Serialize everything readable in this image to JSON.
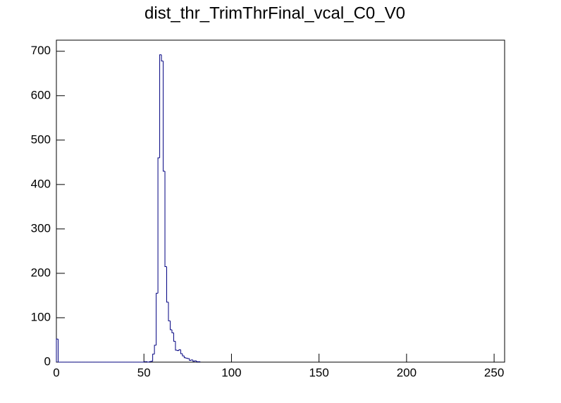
{
  "chart_data": {
    "type": "histogram",
    "title": "dist_thr_TrimThrFinal_vcal_C0_V0",
    "color": "#000080",
    "bins": [
      0,
      1,
      2,
      3,
      4,
      5,
      6,
      7,
      8,
      9,
      10,
      11,
      12,
      13,
      14,
      15,
      16,
      17,
      18,
      19,
      20,
      21,
      22,
      23,
      24,
      25,
      26,
      27,
      28,
      29,
      30,
      31,
      32,
      33,
      34,
      35,
      36,
      37,
      38,
      39,
      40,
      41,
      42,
      43,
      44,
      45,
      46,
      47,
      48,
      49,
      50,
      51,
      52,
      53,
      54,
      55,
      56,
      57,
      58,
      59,
      60,
      61,
      62,
      63,
      64,
      65,
      66,
      67,
      68,
      69,
      70,
      71,
      72,
      73,
      74,
      75,
      76,
      77,
      78,
      79,
      80,
      81,
      82
    ],
    "counts": [
      52,
      0,
      0,
      0,
      0,
      0,
      0,
      0,
      0,
      0,
      0,
      0,
      0,
      0,
      0,
      0,
      0,
      0,
      0,
      0,
      0,
      0,
      0,
      0,
      0,
      0,
      0,
      0,
      0,
      0,
      0,
      0,
      0,
      0,
      0,
      0,
      0,
      0,
      0,
      0,
      0,
      0,
      0,
      0,
      0,
      0,
      0,
      0,
      0,
      0,
      1,
      1,
      0,
      1,
      2,
      18,
      38,
      155,
      460,
      692,
      678,
      430,
      215,
      135,
      93,
      73,
      66,
      47,
      27,
      26,
      28,
      19,
      14,
      10,
      9,
      8,
      4,
      5,
      2,
      3,
      1,
      1
    ],
    "xlim": [
      0,
      256
    ],
    "ylim": [
      0,
      725
    ],
    "xticks": [
      0,
      50,
      100,
      150,
      200,
      250
    ],
    "yticks": [
      0,
      100,
      200,
      300,
      400,
      500,
      600,
      700
    ]
  }
}
